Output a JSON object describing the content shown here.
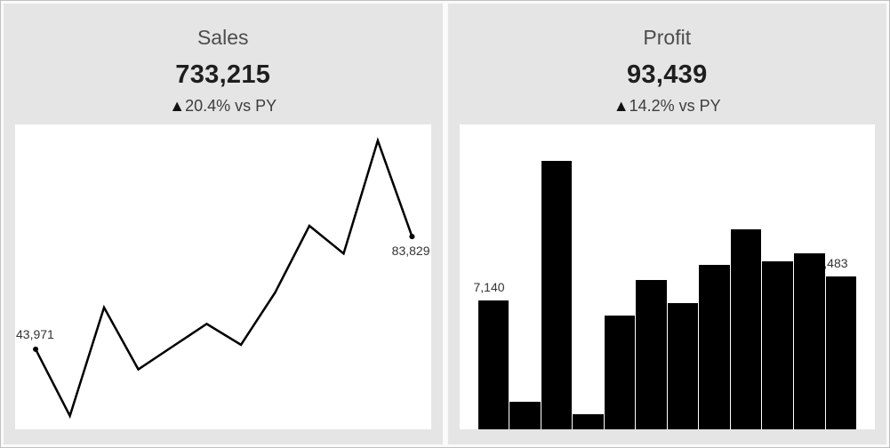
{
  "cards": [
    {
      "title": "Sales",
      "value": "733,215",
      "delta_arrow": "▲",
      "delta_text": "20.4% vs PY",
      "first_label": "43,971",
      "last_label": "83,829"
    },
    {
      "title": "Profit",
      "value": "93,439",
      "delta_arrow": "▲",
      "delta_text": "14.2% vs PY",
      "first_label": "7,140",
      "last_label": "8,483"
    }
  ],
  "colors": {
    "card_background": "#e5e5e5",
    "chart_background": "#ffffff",
    "mark_color": "#000000",
    "title_text": "#4d4d4d",
    "kpi_text": "#1e1e1e",
    "delta_text": "#3d3d3d",
    "label_text": "#333333",
    "outer_border": "#c0c0c0"
  },
  "chart_data": [
    {
      "type": "line",
      "title": "Sales",
      "kpi_value": 733215,
      "delta_vs_py": "+20.4%",
      "x": [
        1,
        2,
        3,
        4,
        5,
        6,
        7,
        8,
        9,
        10,
        11,
        12
      ],
      "values": [
        43971,
        20400,
        58760,
        36860,
        44920,
        52950,
        45560,
        64060,
        87640,
        77800,
        117780,
        83829
      ],
      "first_point_label": "43,971",
      "last_point_label": "83,829",
      "markers": "first-and-last-only",
      "axes_hidden": true,
      "grid": false,
      "line_color": "#000000"
    },
    {
      "type": "bar",
      "title": "Profit",
      "kpi_value": 93439,
      "delta_vs_py": "+14.2%",
      "x": [
        1,
        2,
        3,
        4,
        5,
        6,
        7,
        8,
        9,
        10,
        11,
        12
      ],
      "values": [
        7140,
        1540,
        14850,
        850,
        6320,
        8240,
        6970,
        9110,
        11060,
        9320,
        9750,
        8483
      ],
      "first_bar_label": "7,140",
      "last_bar_label": "8,483",
      "axes_hidden": true,
      "grid": false,
      "bar_color": "#000000"
    }
  ]
}
